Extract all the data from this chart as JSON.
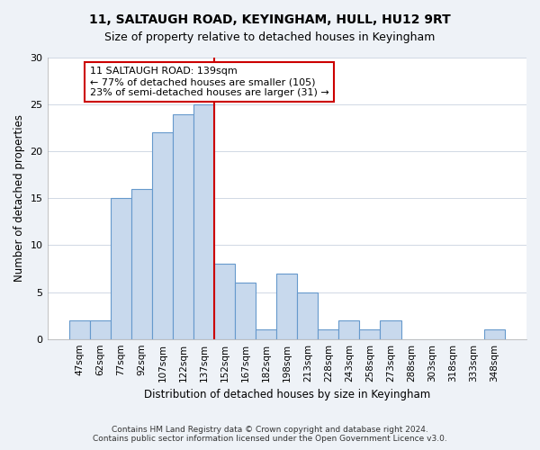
{
  "title1": "11, SALTAUGH ROAD, KEYINGHAM, HULL, HU12 9RT",
  "title2": "Size of property relative to detached houses in Keyingham",
  "xlabel": "Distribution of detached houses by size in Keyingham",
  "ylabel": "Number of detached properties",
  "categories": [
    "47sqm",
    "62sqm",
    "77sqm",
    "92sqm",
    "107sqm",
    "122sqm",
    "137sqm",
    "152sqm",
    "167sqm",
    "182sqm",
    "198sqm",
    "213sqm",
    "228sqm",
    "243sqm",
    "258sqm",
    "273sqm",
    "288sqm",
    "303sqm",
    "318sqm",
    "333sqm",
    "348sqm"
  ],
  "values": [
    2,
    2,
    15,
    16,
    22,
    24,
    25,
    8,
    6,
    1,
    7,
    5,
    1,
    2,
    1,
    2,
    0,
    0,
    0,
    0,
    1
  ],
  "bar_color": "#c8d9ed",
  "bar_edge_color": "#6699cc",
  "vline_color": "#cc0000",
  "annotation_text": "11 SALTAUGH ROAD: 139sqm\n← 77% of detached houses are smaller (105)\n23% of semi-detached houses are larger (31) →",
  "annotation_box_color": "#ffffff",
  "annotation_box_edge_color": "#cc0000",
  "ylim": [
    0,
    30
  ],
  "yticks": [
    0,
    5,
    10,
    15,
    20,
    25,
    30
  ],
  "footer1": "Contains HM Land Registry data © Crown copyright and database right 2024.",
  "footer2": "Contains public sector information licensed under the Open Government Licence v3.0.",
  "bg_color": "#eef2f7",
  "plot_bg_color": "#ffffff"
}
